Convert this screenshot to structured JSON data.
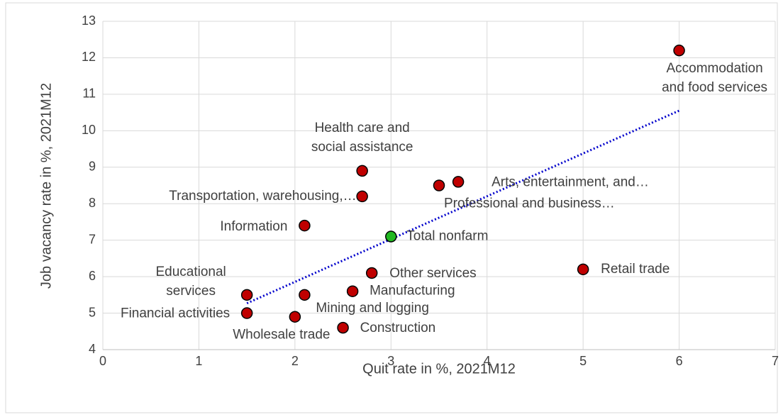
{
  "chart_data": {
    "type": "scatter",
    "xlabel": "Quit rate in %, 2021M12",
    "ylabel": "Job vacancy rate in %, 2021M12",
    "x": [
      6.0,
      2.7,
      2.7,
      3.5,
      3.7,
      2.1,
      3.0,
      5.0,
      2.8,
      1.5,
      2.1,
      2.6,
      1.5,
      2.0,
      2.5
    ],
    "values": [
      12.2,
      8.9,
      8.2,
      8.5,
      8.6,
      7.4,
      7.1,
      6.2,
      6.1,
      5.5,
      5.5,
      5.6,
      5.0,
      4.9,
      4.6
    ],
    "labels": [
      [
        "Accommodation",
        "and food services"
      ],
      [
        "Health care and",
        "social assistance"
      ],
      [
        "Transportation, warehousing,…"
      ],
      [
        "Professional and business…"
      ],
      [
        "Arts, entertainment, and…"
      ],
      [
        "Information"
      ],
      [
        "Total nonfarm"
      ],
      [
        "Retail trade"
      ],
      [
        "Other services"
      ],
      [
        "Educational",
        "services"
      ],
      [
        "Mining and logging"
      ],
      [
        "Manufacturing"
      ],
      [
        "Financial activities"
      ],
      [
        "Wholesale trade"
      ],
      [
        "Construction"
      ]
    ],
    "colors": [
      "#c00000",
      "#c00000",
      "#c00000",
      "#c00000",
      "#c00000",
      "#c00000",
      "#22b822",
      "#c00000",
      "#c00000",
      "#c00000",
      "#c00000",
      "#c00000",
      "#c00000",
      "#c00000",
      "#c00000"
    ],
    "trendline": {
      "x": [
        1.5,
        6.0
      ],
      "y": [
        5.27,
        10.55
      ],
      "color": "#0000cc"
    },
    "xlim": [
      0,
      7
    ],
    "xticks": [
      0,
      1,
      2,
      3,
      4,
      5,
      6,
      7
    ],
    "ylim": [
      4,
      13
    ],
    "yticks": [
      4,
      5,
      6,
      7,
      8,
      9,
      10,
      11,
      12,
      13
    ],
    "grid": true
  }
}
